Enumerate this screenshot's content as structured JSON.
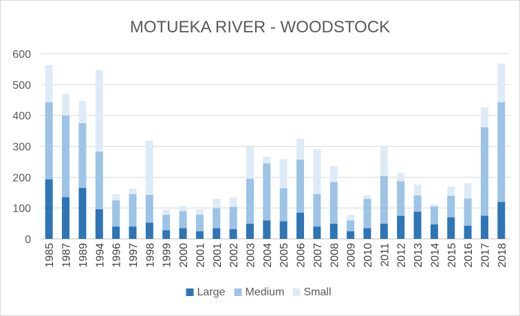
{
  "chart_data": {
    "type": "bar",
    "stacked": true,
    "title": "MOTUEKA RIVER - WOODSTOCK",
    "xlabel": "",
    "ylabel": "",
    "ylim": [
      0,
      600
    ],
    "yticks": [
      0,
      100,
      200,
      300,
      400,
      500,
      600
    ],
    "grid": true,
    "legend": "bottom",
    "categories": [
      "1985",
      "1987",
      "1989",
      "1994",
      "1996",
      "1997",
      "1998",
      "1999",
      "2000",
      "2001",
      "2001",
      "2002",
      "2003",
      "2004",
      "2005",
      "2006",
      "2007",
      "2008",
      "2009",
      "2010",
      "2011",
      "2012",
      "2013",
      "2014",
      "2015",
      "2016",
      "2017",
      "2018"
    ],
    "series": [
      {
        "name": "Large",
        "color": "#2e75b6",
        "values": [
          193,
          135,
          165,
          96,
          40,
          40,
          53,
          28,
          35,
          25,
          35,
          32,
          49,
          60,
          57,
          85,
          40,
          49,
          25,
          35,
          49,
          75,
          88,
          47,
          70,
          43,
          75,
          120
        ]
      },
      {
        "name": "Medium",
        "color": "#9dc3e6",
        "values": [
          250,
          265,
          210,
          187,
          85,
          105,
          90,
          50,
          55,
          53,
          65,
          72,
          146,
          185,
          107,
          172,
          105,
          135,
          35,
          95,
          155,
          112,
          53,
          58,
          70,
          88,
          287,
          323
        ]
      },
      {
        "name": "Small",
        "color": "#deebf7",
        "values": [
          120,
          70,
          72,
          264,
          20,
          18,
          175,
          17,
          17,
          18,
          30,
          30,
          103,
          22,
          94,
          67,
          145,
          52,
          18,
          12,
          97,
          28,
          35,
          7,
          30,
          50,
          65,
          125
        ]
      }
    ]
  }
}
